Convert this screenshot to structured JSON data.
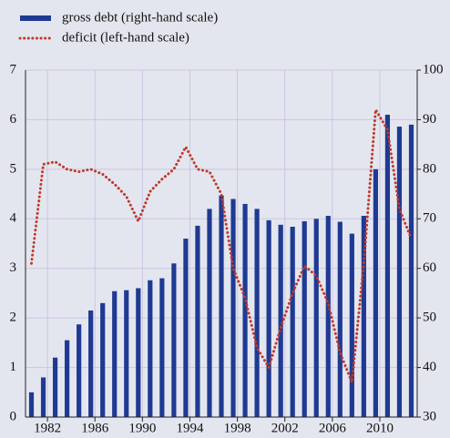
{
  "chart_data": {
    "type": "bar-line",
    "categories": [
      null,
      "1982",
      null,
      null,
      null,
      "1986",
      null,
      null,
      null,
      "1990",
      null,
      null,
      null,
      "1994",
      null,
      null,
      null,
      "1998",
      null,
      null,
      null,
      "2002",
      null,
      null,
      null,
      "2006",
      null,
      null,
      null,
      "2010",
      null,
      null,
      null
    ],
    "series": [
      {
        "name": "gross debt (right-hand scale)",
        "color": "#1f3a93",
        "axis": "y2",
        "kind": "bar",
        "values": [
          35,
          38,
          42,
          45.5,
          48.7,
          51.5,
          53,
          55.4,
          55.6,
          56,
          57.6,
          58,
          61,
          66,
          68.6,
          72,
          74.7,
          74,
          73,
          72,
          69.7,
          68.8,
          68.4,
          69.5,
          70,
          70.6,
          69.4,
          67,
          70.6,
          80,
          91,
          88.6,
          89
        ]
      },
      {
        "name": "deficit (left-hand scale)",
        "color": "#c0392b",
        "axis": "y",
        "kind": "line",
        "values": [
          3.1,
          5.1,
          5.15,
          5.0,
          4.95,
          5.0,
          4.9,
          4.7,
          4.45,
          3.95,
          4.55,
          4.8,
          5.0,
          5.45,
          5.0,
          4.95,
          4.5,
          3.0,
          2.4,
          1.4,
          1.0,
          1.8,
          2.5,
          3.05,
          2.85,
          2.3,
          1.3,
          0.7,
          3.1,
          6.2,
          5.8,
          4.2,
          3.6
        ]
      }
    ],
    "ylim": [
      0,
      7
    ],
    "yticks": [
      0,
      1,
      2,
      3,
      4,
      5,
      6,
      7
    ],
    "y2lim": [
      30,
      100
    ],
    "y2ticks": [
      30,
      40,
      50,
      60,
      70,
      80,
      90,
      100
    ],
    "grid": true
  }
}
